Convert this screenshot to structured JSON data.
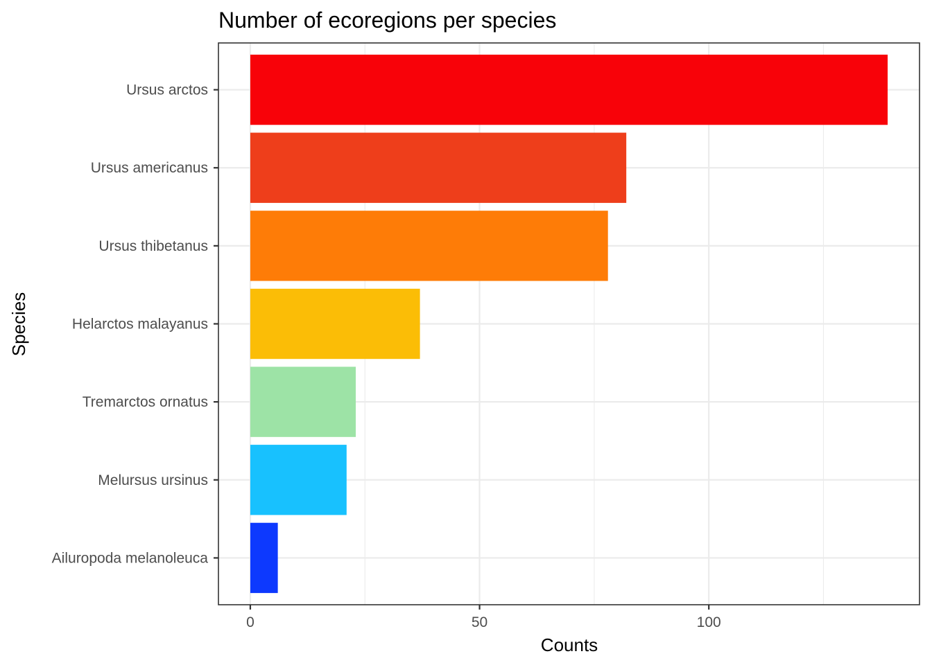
{
  "chart_data": {
    "type": "bar",
    "orientation": "horizontal",
    "title": "Number of ecoregions per species",
    "xlabel": "Counts",
    "ylabel": "Species",
    "categories": [
      "Ursus arctos",
      "Ursus americanus",
      "Ursus thibetanus",
      "Helarctos malayanus",
      "Tremarctos ornatus",
      "Melursus ursinus",
      "Ailuropoda melanoleuca"
    ],
    "values": [
      139,
      82,
      78,
      37,
      23,
      21,
      6
    ],
    "colors": [
      "#f80209",
      "#ee3e1b",
      "#fe7c07",
      "#fbbd06",
      "#9de3a6",
      "#18c1fe",
      "#0d39fe"
    ],
    "xlim": [
      -6.95,
      145.95
    ],
    "xticks": [
      0,
      50,
      100
    ],
    "xtick_labels": [
      "0",
      "50",
      "100"
    ],
    "grid": true,
    "legend": "none"
  }
}
